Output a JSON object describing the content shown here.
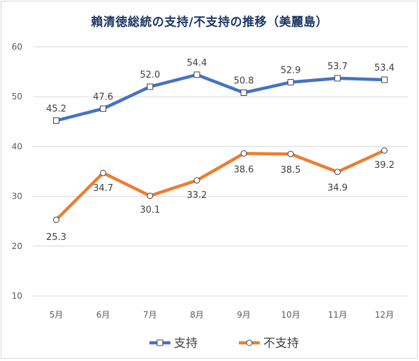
{
  "chart_data": {
    "type": "line",
    "title": "賴清徳総統の支持/不支持の推移（美麗島）",
    "categories": [
      "5月",
      "6月",
      "7月",
      "8月",
      "9月",
      "10月",
      "11月",
      "12月"
    ],
    "ylim": [
      10,
      60
    ],
    "yticks": [
      "10",
      "20",
      "30",
      "40",
      "50",
      "60"
    ],
    "grid": true,
    "legend_position": "bottom",
    "series": [
      {
        "name": "支持",
        "color": "#4472c4",
        "marker": "square",
        "values": [
          45.2,
          47.6,
          52.0,
          54.4,
          50.8,
          52.9,
          53.7,
          53.4
        ],
        "labels": [
          "45.2",
          "47.6",
          "52.0",
          "54.4",
          "50.8",
          "52.9",
          "53.7",
          "53.4"
        ]
      },
      {
        "name": "不支持",
        "color": "#ed7d31",
        "marker": "circle",
        "values": [
          25.3,
          34.7,
          30.1,
          33.2,
          38.6,
          38.5,
          34.9,
          39.2
        ],
        "labels": [
          "25.3",
          "34.7",
          "30.1",
          "33.2",
          "38.6",
          "38.5",
          "34.9",
          "39.2"
        ]
      }
    ]
  }
}
